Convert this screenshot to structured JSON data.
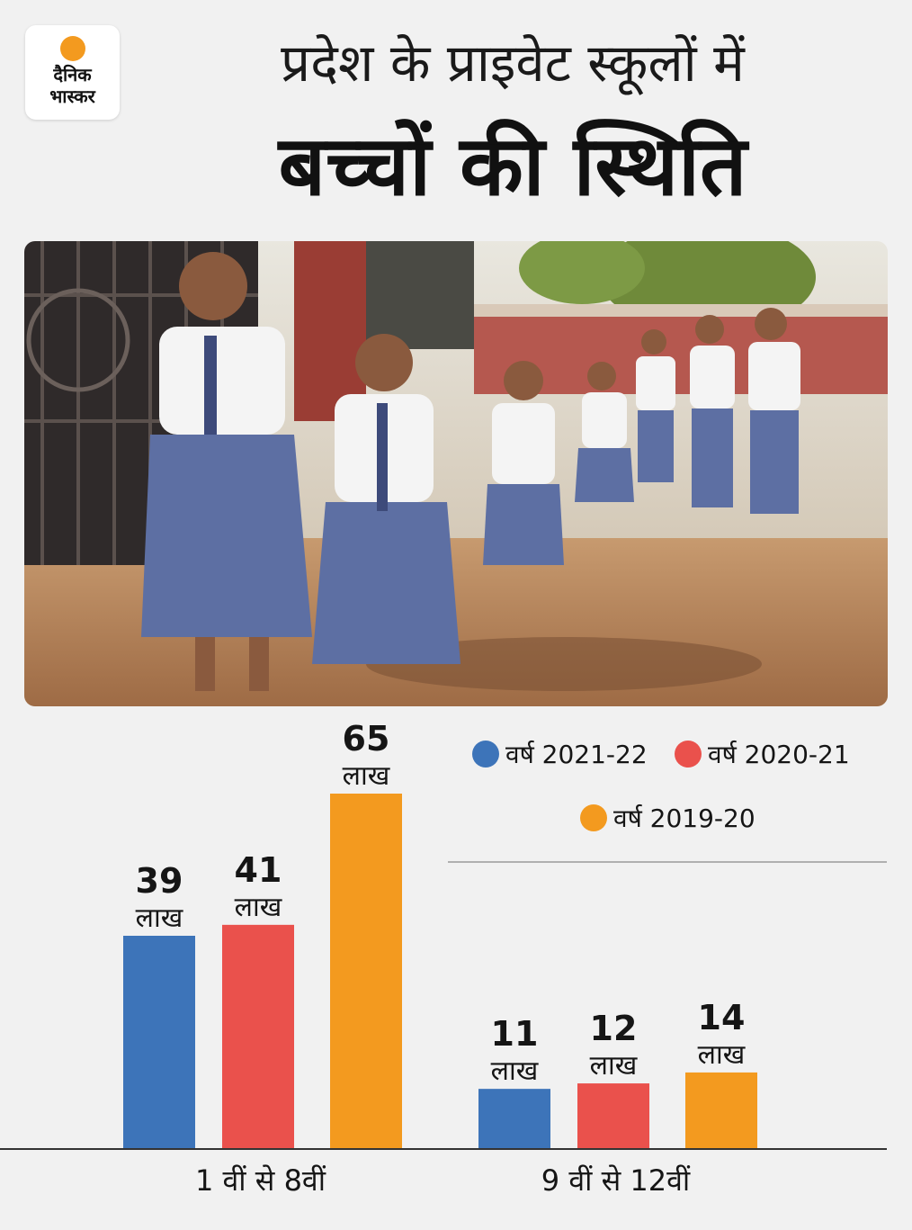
{
  "logo": {
    "line1": "दैनिक",
    "line2": "भास्कर"
  },
  "header": {
    "title_line1": "प्रदेश के प्राइवेट स्कूलों में",
    "title_line2": "बच्चों की स्थिति"
  },
  "photo": {
    "description_icon": "students-walking-photo"
  },
  "colors": {
    "series_2021_22": "#3d74b9",
    "series_2020_21": "#ea514c",
    "series_2019_20": "#f39a1f",
    "axis": "#333333"
  },
  "chart_data": {
    "type": "bar",
    "categories": [
      "1 वीं से 8वीं",
      "9 वीं से 12वीं"
    ],
    "unit": "लाख",
    "series": [
      {
        "name": "वर्ष 2021-22",
        "values": [
          39,
          11
        ],
        "color": "#3d74b9"
      },
      {
        "name": "वर्ष 2020-21",
        "values": [
          41,
          12
        ],
        "color": "#ea514c"
      },
      {
        "name": "वर्ष 2019-20",
        "values": [
          65,
          14
        ],
        "color": "#f39a1f"
      }
    ],
    "legend_position": "top-right",
    "ylim": [
      0,
      70
    ],
    "grid": false
  }
}
